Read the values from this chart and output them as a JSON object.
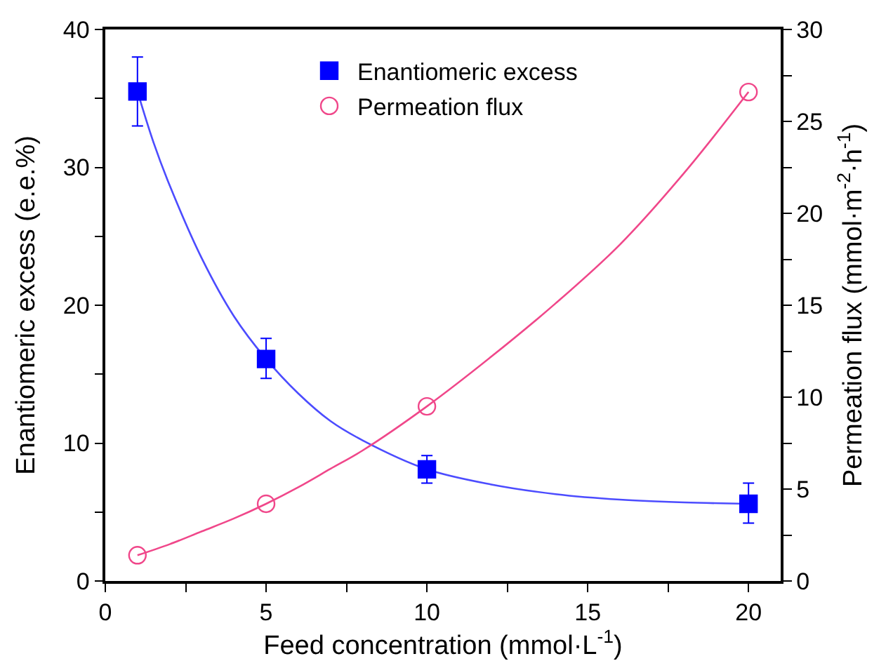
{
  "chart_data": {
    "type": "scatter",
    "xlabel": "Feed concentration (mmol·L$^{-1}$)",
    "ylabel": "Enantiomeric excess (e.e.%)",
    "y2label": "Permeation flux (mmol·m$^{-2}$·h$^{-1}$)",
    "x": [
      1,
      5,
      10,
      20
    ],
    "xlim": [
      0,
      21
    ],
    "xticks": [
      0,
      {
        "value": 2.5,
        "label": null
      },
      5,
      {
        "value": 7.5,
        "label": null
      },
      10,
      {
        "value": 12.5,
        "label": null
      },
      15,
      {
        "value": 17.5,
        "label": null
      },
      20
    ],
    "ylim": [
      0,
      40
    ],
    "yticks": [
      0,
      {
        "value": 5,
        "label": null
      },
      10,
      {
        "value": 15,
        "label": null
      },
      20,
      {
        "value": 25,
        "label": null
      },
      30,
      {
        "value": 35,
        "label": null
      },
      40
    ],
    "y2lim": [
      0,
      30
    ],
    "y2ticks": [
      0,
      {
        "value": 2.5,
        "label": null
      },
      5,
      {
        "value": 7.5,
        "label": null
      },
      10,
      {
        "value": 12.5,
        "label": null
      },
      15,
      {
        "value": 17.5,
        "label": null
      },
      20,
      {
        "value": 22.5,
        "label": null
      },
      25,
      {
        "value": 27.5,
        "label": null
      },
      30
    ],
    "legend": "top",
    "series": [
      {
        "type": "line",
        "color": "#4c4cff",
        "marker": "none",
        "x": [
          1,
          1.5,
          2,
          3,
          4,
          5,
          6,
          7,
          8,
          10,
          12,
          14,
          16,
          18,
          20
        ],
        "values": [
          35.5,
          31.8,
          28.7,
          23.4,
          19.2,
          16.1,
          13.6,
          11.6,
          10.2,
          8.1,
          7.0,
          6.3,
          5.9,
          5.7,
          5.6
        ]
      },
      {
        "type": "line",
        "axis": "y2",
        "color": "#f0478a",
        "marker": "none",
        "x": [
          1,
          2,
          3,
          4,
          5,
          6,
          7,
          8,
          10,
          12,
          14,
          16,
          18,
          20
        ],
        "values": [
          1.4,
          2.0,
          2.7,
          3.4,
          4.2,
          5.1,
          6.1,
          7.1,
          9.5,
          12.2,
          15.1,
          18.3,
          22.2,
          26.6
        ]
      },
      {
        "name": "Enantiomeric excess",
        "color": "#0000ff",
        "marker": "square",
        "values": [
          35.5,
          16.1,
          8.1,
          5.6
        ],
        "errors": [
          [
            33.0,
            38.0
          ],
          [
            14.7,
            17.6
          ],
          [
            7.1,
            9.1
          ],
          [
            4.2,
            7.1
          ]
        ]
      },
      {
        "name": "Permeation flux",
        "axis": "y2",
        "color": "#f0478a",
        "marker": "circle",
        "values": [
          1.4,
          4.2,
          9.5,
          26.6
        ]
      }
    ]
  }
}
